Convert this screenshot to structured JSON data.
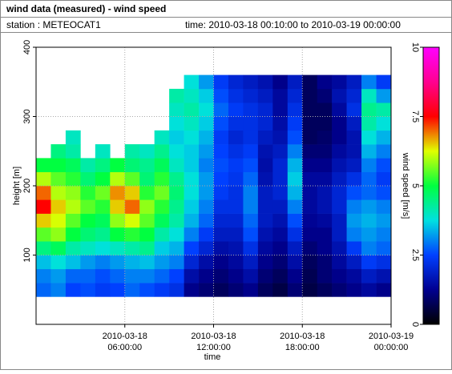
{
  "chart_data": {
    "type": "heatmap",
    "title": "wind data (measured) - wind speed",
    "station": "station : METEOCAT1",
    "time_range": "time: 2010-03-18 00:10:00 to 2010-03-19 00:00:00",
    "xlabel": "time",
    "ylabel": "height [m]",
    "colorbar_label": "wind speed [m/s]",
    "x": [
      0,
      1,
      2,
      3,
      4,
      5,
      6,
      7,
      8,
      9,
      10,
      11,
      12,
      13,
      14,
      15,
      16,
      17,
      18,
      19,
      20,
      21,
      22,
      23
    ],
    "y": [
      40,
      60,
      80,
      100,
      120,
      140,
      160,
      180,
      200,
      220,
      240,
      260,
      280,
      300,
      320,
      340
    ],
    "z": [
      [
        2.8,
        3.0,
        3.5,
        4.5,
        5.5,
        6.5,
        7.5,
        7.0,
        6.0,
        5.0,
        null,
        null,
        null,
        null,
        null,
        null
      ],
      [
        3.0,
        3.2,
        3.8,
        4.8,
        5.8,
        6.2,
        6.5,
        6.0,
        5.5,
        5.0,
        4.5,
        null,
        null,
        null,
        null,
        null
      ],
      [
        2.5,
        2.8,
        3.5,
        4.2,
        5.0,
        5.5,
        6.0,
        5.8,
        5.2,
        4.8,
        4.2,
        4.0,
        null,
        null,
        null,
        null
      ],
      [
        2.6,
        2.8,
        3.2,
        4.0,
        4.6,
        5.0,
        5.5,
        5.2,
        4.6,
        4.2,
        null,
        null,
        null,
        null,
        null,
        null
      ],
      [
        2.4,
        2.6,
        3.0,
        3.8,
        4.4,
        4.8,
        5.2,
        5.6,
        5.0,
        4.5,
        4.0,
        null,
        null,
        null,
        null,
        null
      ],
      [
        2.5,
        2.8,
        3.2,
        4.0,
        5.0,
        5.8,
        6.5,
        6.8,
        6.0,
        5.0,
        null,
        null,
        null,
        null,
        null,
        null
      ],
      [
        2.8,
        3.0,
        3.4,
        4.2,
        5.2,
        6.2,
        7.0,
        6.5,
        5.5,
        4.6,
        4.2,
        null,
        null,
        null,
        null,
        null
      ],
      [
        2.6,
        3.0,
        3.5,
        4.4,
        5.0,
        5.5,
        5.8,
        5.2,
        4.6,
        4.4,
        4.0,
        null,
        null,
        null,
        null,
        null
      ],
      [
        2.4,
        2.8,
        3.2,
        3.6,
        4.2,
        4.8,
        5.2,
        5.6,
        5.2,
        4.8,
        4.4,
        4.0,
        null,
        null,
        null,
        null
      ],
      [
        2.2,
        2.5,
        3.0,
        3.4,
        3.8,
        4.2,
        4.4,
        4.6,
        4.4,
        4.0,
        3.8,
        3.6,
        3.8,
        4.0,
        4.2,
        null
      ],
      [
        1.2,
        1.5,
        2.0,
        2.5,
        3.0,
        3.4,
        3.6,
        3.8,
        3.8,
        3.6,
        3.6,
        3.8,
        4.0,
        4.2,
        4.0,
        3.8
      ],
      [
        1.0,
        1.2,
        1.5,
        2.0,
        2.4,
        2.8,
        3.0,
        3.2,
        3.2,
        3.0,
        3.2,
        3.4,
        3.6,
        3.8,
        3.6,
        3.2
      ],
      [
        0.8,
        1.0,
        1.2,
        1.5,
        1.8,
        2.0,
        2.2,
        2.4,
        2.5,
        2.6,
        2.5,
        2.4,
        2.6,
        2.8,
        2.6,
        2.4
      ],
      [
        1.0,
        1.2,
        1.4,
        1.6,
        1.8,
        2.0,
        2.2,
        2.2,
        2.3,
        2.4,
        2.2,
        2.0,
        2.2,
        2.4,
        2.2,
        2.0
      ],
      [
        1.2,
        1.5,
        1.8,
        2.2,
        2.6,
        2.8,
        3.0,
        3.0,
        2.8,
        2.6,
        2.4,
        2.2,
        2.2,
        2.2,
        2.0,
        1.8
      ],
      [
        0.8,
        1.0,
        1.2,
        1.4,
        1.6,
        1.8,
        1.8,
        1.8,
        1.6,
        1.5,
        1.6,
        1.8,
        2.0,
        2.0,
        1.8,
        1.6
      ],
      [
        0.6,
        0.8,
        1.0,
        1.2,
        1.4,
        1.6,
        1.8,
        2.0,
        2.0,
        2.0,
        1.8,
        1.6,
        1.5,
        1.4,
        1.4,
        1.2
      ],
      [
        1.0,
        1.2,
        1.5,
        1.8,
        2.2,
        2.6,
        3.0,
        3.4,
        3.6,
        3.4,
        3.0,
        2.6,
        2.4,
        2.2,
        2.0,
        1.8
      ],
      [
        0.6,
        0.7,
        0.8,
        1.0,
        1.2,
        1.3,
        1.4,
        1.4,
        1.4,
        1.2,
        1.0,
        0.8,
        0.8,
        0.8,
        0.8,
        0.8
      ],
      [
        0.8,
        1.0,
        1.0,
        1.2,
        1.2,
        1.4,
        1.6,
        1.6,
        1.4,
        1.2,
        1.0,
        0.9,
        0.8,
        0.8,
        1.0,
        1.2
      ],
      [
        1.0,
        1.2,
        1.4,
        1.6,
        1.8,
        1.8,
        2.0,
        2.0,
        1.8,
        1.6,
        1.4,
        1.2,
        1.2,
        1.4,
        1.6,
        1.4
      ],
      [
        1.2,
        1.4,
        1.8,
        2.4,
        3.0,
        3.2,
        3.0,
        2.6,
        2.2,
        1.8,
        1.6,
        1.6,
        1.8,
        2.2,
        2.0,
        1.8
      ],
      [
        1.4,
        1.8,
        2.4,
        3.0,
        3.2,
        3.4,
        3.2,
        2.8,
        2.8,
        3.0,
        3.4,
        3.8,
        4.2,
        4.4,
        4.0,
        3.0
      ],
      [
        1.2,
        1.6,
        2.2,
        2.8,
        3.0,
        3.2,
        3.0,
        2.6,
        2.4,
        2.6,
        3.0,
        3.4,
        3.8,
        4.2,
        3.2,
        2.4
      ]
    ],
    "xlim": [
      0,
      24
    ],
    "xticks": [
      {
        "value": 6,
        "label": "2010-03-18 06:00:00"
      },
      {
        "value": 12,
        "label": "2010-03-18 12:00:00"
      },
      {
        "value": 18,
        "label": "2010-03-18 18:00:00"
      },
      {
        "value": 24,
        "label": "2010-03-19 00:00:00"
      }
    ],
    "ylim": [
      0,
      400
    ],
    "yticks": [
      100,
      200,
      300,
      400
    ],
    "zlim": [
      0,
      10
    ],
    "zticks": [
      0,
      2.5,
      5,
      7.5,
      10
    ],
    "colormap": [
      "#000000",
      "#000090",
      "#0040ff",
      "#00e0e0",
      "#00ff40",
      "#e0ff00",
      "#ff0000",
      "#ff0090",
      "#ff00ff"
    ],
    "grid": true
  }
}
